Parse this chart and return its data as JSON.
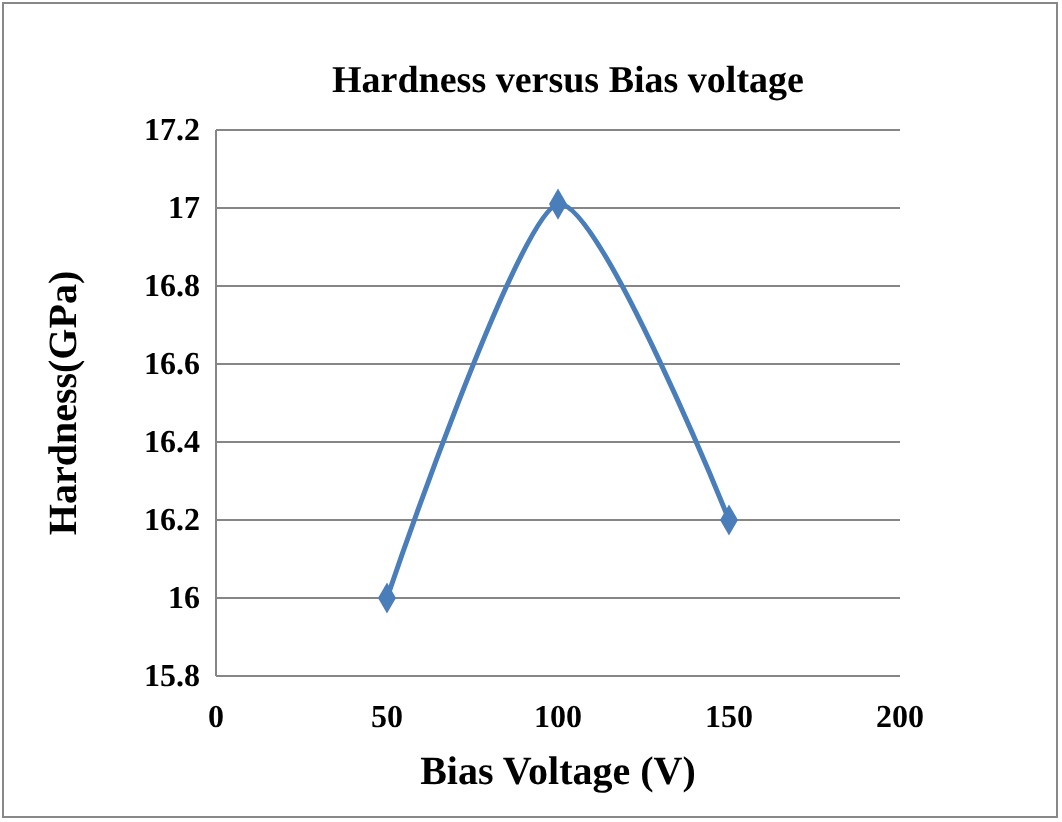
{
  "chart_data": {
    "type": "line",
    "title": "Hardness versus Bias voltage",
    "xlabel": "Bias Voltage (V)",
    "ylabel": "Hardness(GPa)",
    "x": [
      50,
      100,
      150
    ],
    "series": [
      {
        "color": "#4a7ebb",
        "values": [
          16,
          17.01,
          16.2
        ]
      }
    ],
    "xlim": [
      0,
      200
    ],
    "xticks": [
      0,
      50,
      100,
      150,
      200
    ],
    "ylim": [
      15.8,
      17.2
    ],
    "yticks": [
      15.8,
      16,
      16.2,
      16.4,
      16.6,
      16.8,
      17,
      17.2
    ],
    "grid": "y",
    "marker": "diamond"
  }
}
